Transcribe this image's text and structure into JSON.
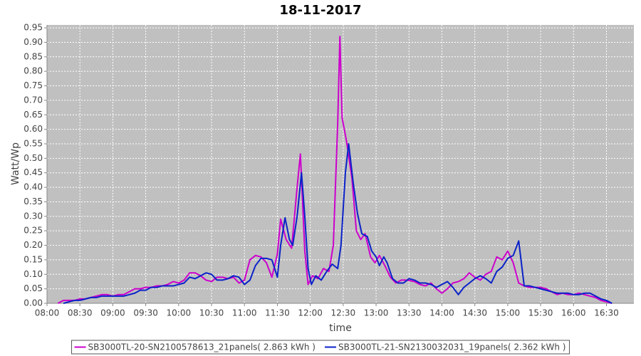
{
  "chart_data": {
    "type": "line",
    "title": "18-11-2017",
    "x_label": "time",
    "y_label": "Watt/Wp",
    "xlim": [
      "08:00",
      "16:55"
    ],
    "xticks": [
      "08:00",
      "08:30",
      "09:00",
      "09:30",
      "10:00",
      "10:30",
      "11:00",
      "11:30",
      "12:00",
      "12:30",
      "13:00",
      "13:30",
      "14:00",
      "14:30",
      "15:00",
      "15:30",
      "16:00",
      "16:30"
    ],
    "ylim": [
      0,
      0.96
    ],
    "yticks": [
      {
        "value": 0,
        "label": "0.00"
      },
      {
        "value": 0.05,
        "label": "0.05"
      },
      {
        "value": 0.1,
        "label": "0.10"
      },
      {
        "value": 0.15,
        "label": "0.15"
      },
      {
        "value": 0.2,
        "label": "0.20"
      },
      {
        "value": 0.25,
        "label": "0.25"
      },
      {
        "value": 0.3,
        "label": "0.30"
      },
      {
        "value": 0.35,
        "label": "0.35"
      },
      {
        "value": 0.4,
        "label": "0.40"
      },
      {
        "value": 0.45,
        "label": "0.45"
      },
      {
        "value": 0.5,
        "label": "0.50"
      },
      {
        "value": 0.55,
        "label": "0.55"
      },
      {
        "value": 0.6,
        "label": "0.60"
      },
      {
        "value": 0.65,
        "label": "0.65"
      },
      {
        "value": 0.7,
        "label": "0.70"
      },
      {
        "value": 0.75,
        "label": "0.75"
      },
      {
        "value": 0.8,
        "label": "0.80"
      },
      {
        "value": 0.85,
        "label": "0.85"
      },
      {
        "value": 0.9,
        "label": "0.90"
      },
      {
        "value": 0.95,
        "label": "0.95"
      }
    ],
    "grid": true,
    "legend": "bottom",
    "series": [
      {
        "name": "SB3000TL-20-SN2100578613_21panels( 2.863 kWh )",
        "color": "#cc00cc",
        "x": [
          "08:10",
          "08:15",
          "08:20",
          "08:25",
          "08:30",
          "08:35",
          "08:40",
          "08:45",
          "08:50",
          "08:55",
          "09:00",
          "09:05",
          "09:10",
          "09:15",
          "09:20",
          "09:25",
          "09:30",
          "09:35",
          "09:40",
          "09:45",
          "09:50",
          "09:55",
          "10:00",
          "10:05",
          "10:10",
          "10:15",
          "10:20",
          "10:25",
          "10:30",
          "10:35",
          "10:40",
          "10:45",
          "10:50",
          "10:55",
          "11:00",
          "11:05",
          "11:10",
          "11:15",
          "11:20",
          "11:25",
          "11:30",
          "11:33",
          "11:38",
          "11:43",
          "11:48",
          "11:51",
          "11:55",
          "11:58",
          "12:02",
          "12:07",
          "12:12",
          "12:17",
          "12:21",
          "12:25",
          "12:27",
          "12:29",
          "12:33",
          "12:38",
          "12:42",
          "12:46",
          "12:50",
          "12:55",
          "12:59",
          "13:03",
          "13:08",
          "13:13",
          "13:18",
          "13:23",
          "13:28",
          "13:35",
          "13:40",
          "13:45",
          "13:50",
          "13:55",
          "14:00",
          "14:05",
          "14:10",
          "14:15",
          "14:20",
          "14:25",
          "14:30",
          "14:35",
          "14:40",
          "14:45",
          "14:50",
          "14:55",
          "15:00",
          "15:05",
          "15:10",
          "15:15",
          "15:20",
          "15:25",
          "15:30",
          "15:35",
          "15:40",
          "15:45",
          "15:50",
          "15:55",
          "16:00",
          "16:05",
          "16:10",
          "16:15",
          "16:20",
          "16:25",
          "16:30",
          "16:35"
        ],
        "values": [
          0,
          0.01,
          0.01,
          0.01,
          0.015,
          0.015,
          0.02,
          0.025,
          0.03,
          0.03,
          0.025,
          0.03,
          0.03,
          0.04,
          0.05,
          0.05,
          0.055,
          0.055,
          0.06,
          0.06,
          0.065,
          0.075,
          0.07,
          0.08,
          0.105,
          0.105,
          0.095,
          0.08,
          0.075,
          0.09,
          0.09,
          0.085,
          0.09,
          0.07,
          0.08,
          0.15,
          0.165,
          0.16,
          0.14,
          0.09,
          0.17,
          0.29,
          0.22,
          0.19,
          0.4,
          0.515,
          0.18,
          0.065,
          0.095,
          0.085,
          0.12,
          0.11,
          0.2,
          0.62,
          0.92,
          0.64,
          0.56,
          0.43,
          0.25,
          0.22,
          0.24,
          0.16,
          0.14,
          0.165,
          0.13,
          0.09,
          0.07,
          0.08,
          0.08,
          0.075,
          0.065,
          0.06,
          0.07,
          0.05,
          0.035,
          0.05,
          0.07,
          0.075,
          0.085,
          0.105,
          0.09,
          0.08,
          0.1,
          0.11,
          0.16,
          0.15,
          0.18,
          0.14,
          0.07,
          0.06,
          0.055,
          0.055,
          0.055,
          0.05,
          0.04,
          0.03,
          0.035,
          0.03,
          0.03,
          0.035,
          0.03,
          0.025,
          0.02,
          0.01,
          0.005,
          0
        ]
      },
      {
        "name": "SB3000TL-21-SN2130032031_19panels( 2.362 kWh )",
        "color": "#0a22c8",
        "x": [
          "08:15",
          "08:20",
          "08:25",
          "08:30",
          "08:35",
          "08:40",
          "08:45",
          "08:50",
          "08:55",
          "09:00",
          "09:05",
          "09:10",
          "09:15",
          "09:20",
          "09:25",
          "09:30",
          "09:35",
          "09:40",
          "09:45",
          "09:50",
          "09:55",
          "10:00",
          "10:05",
          "10:10",
          "10:15",
          "10:20",
          "10:25",
          "10:30",
          "10:35",
          "10:40",
          "10:45",
          "10:50",
          "10:55",
          "11:00",
          "11:05",
          "11:10",
          "11:15",
          "11:20",
          "11:25",
          "11:30",
          "11:33",
          "11:37",
          "11:41",
          "11:44",
          "11:48",
          "11:52",
          "11:55",
          "11:58",
          "12:01",
          "12:05",
          "12:10",
          "12:15",
          "12:20",
          "12:25",
          "12:28",
          "12:32",
          "12:35",
          "12:39",
          "12:43",
          "12:47",
          "12:52",
          "12:56",
          "13:00",
          "13:03",
          "13:07",
          "13:10",
          "13:15",
          "13:20",
          "13:25",
          "13:30",
          "13:35",
          "13:40",
          "13:45",
          "13:50",
          "13:55",
          "14:00",
          "14:05",
          "14:10",
          "14:15",
          "14:20",
          "14:25",
          "14:30",
          "14:35",
          "14:40",
          "14:45",
          "14:50",
          "14:55",
          "15:00",
          "15:05",
          "15:10",
          "15:15",
          "15:20",
          "15:25",
          "15:30",
          "15:35",
          "15:40",
          "15:45",
          "15:50",
          "15:55",
          "16:00",
          "16:05",
          "16:10",
          "16:15",
          "16:20",
          "16:25",
          "16:30",
          "16:35"
        ],
        "values": [
          0,
          0.005,
          0.01,
          0.01,
          0.015,
          0.02,
          0.02,
          0.025,
          0.025,
          0.025,
          0.025,
          0.025,
          0.03,
          0.035,
          0.045,
          0.045,
          0.055,
          0.055,
          0.06,
          0.06,
          0.06,
          0.065,
          0.07,
          0.09,
          0.085,
          0.095,
          0.105,
          0.1,
          0.08,
          0.08,
          0.085,
          0.095,
          0.09,
          0.065,
          0.08,
          0.13,
          0.155,
          0.155,
          0.15,
          0.09,
          0.2,
          0.295,
          0.22,
          0.2,
          0.3,
          0.45,
          0.3,
          0.12,
          0.065,
          0.095,
          0.08,
          0.11,
          0.135,
          0.12,
          0.2,
          0.45,
          0.55,
          0.42,
          0.31,
          0.24,
          0.23,
          0.18,
          0.16,
          0.13,
          0.16,
          0.14,
          0.085,
          0.07,
          0.07,
          0.085,
          0.08,
          0.07,
          0.07,
          0.065,
          0.055,
          0.065,
          0.075,
          0.055,
          0.03,
          0.055,
          0.07,
          0.085,
          0.095,
          0.085,
          0.07,
          0.11,
          0.125,
          0.155,
          0.165,
          0.215,
          0.06,
          0.06,
          0.055,
          0.05,
          0.045,
          0.04,
          0.035,
          0.035,
          0.035,
          0.03,
          0.03,
          0.035,
          0.035,
          0.025,
          0.015,
          0.01,
          0
        ]
      }
    ]
  }
}
